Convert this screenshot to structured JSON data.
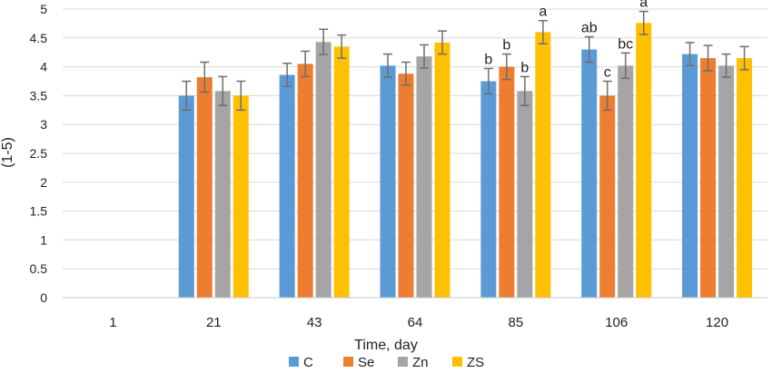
{
  "chart_data": {
    "type": "bar",
    "title": "",
    "xlabel": "Time, day",
    "ylabel": "(1-5)",
    "ylim": [
      0,
      5
    ],
    "ytick_step": 0.5,
    "yticks": [
      "0",
      "0.5",
      "1",
      "1.5",
      "2",
      "2.5",
      "3",
      "3.5",
      "4",
      "4.5",
      "5"
    ],
    "grid": true,
    "legend_position": "bottom",
    "categories": [
      "1",
      "21",
      "43",
      "64",
      "85",
      "106",
      "120"
    ],
    "series": [
      {
        "name": "C",
        "color": "#5B9BD5",
        "values": [
          0,
          3.5,
          3.86,
          4.02,
          3.75,
          4.3,
          4.22
        ],
        "errors": [
          0,
          0.25,
          0.2,
          0.2,
          0.22,
          0.22,
          0.2
        ],
        "labels": [
          "",
          "",
          "",
          "",
          "b",
          "ab",
          ""
        ]
      },
      {
        "name": "Se",
        "color": "#ED7D31",
        "values": [
          0,
          3.82,
          4.05,
          3.88,
          4.0,
          3.5,
          4.15
        ],
        "errors": [
          0,
          0.26,
          0.22,
          0.2,
          0.22,
          0.25,
          0.22
        ],
        "labels": [
          "",
          "",
          "",
          "",
          "b",
          "c",
          ""
        ]
      },
      {
        "name": "Zn",
        "color": "#A5A5A5",
        "values": [
          0,
          3.58,
          4.43,
          4.18,
          3.58,
          4.02,
          4.02
        ],
        "errors": [
          0,
          0.25,
          0.22,
          0.2,
          0.25,
          0.22,
          0.2
        ],
        "labels": [
          "",
          "",
          "",
          "",
          "b",
          "bc",
          ""
        ]
      },
      {
        "name": "ZS",
        "color": "#FFC000",
        "values": [
          0,
          3.5,
          4.35,
          4.42,
          4.6,
          4.76,
          4.15
        ],
        "errors": [
          0,
          0.25,
          0.2,
          0.2,
          0.2,
          0.2,
          0.2
        ],
        "labels": [
          "",
          "",
          "",
          "",
          "a",
          "a",
          ""
        ]
      }
    ]
  }
}
